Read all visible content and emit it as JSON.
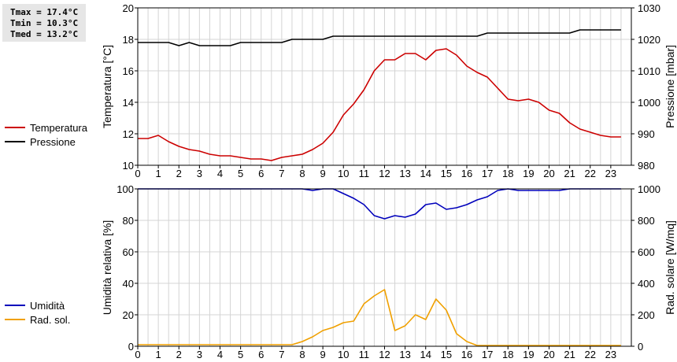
{
  "stats": {
    "tmax": "Tmax = 17.4°C",
    "tmin": "Tmin = 10.3°C",
    "tmed": "Tmed = 13.2°C"
  },
  "legend_top": [
    {
      "label": "Temperatura",
      "color": "#cc0000"
    },
    {
      "label": "Pressione",
      "color": "#000000"
    }
  ],
  "legend_bottom": [
    {
      "label": "Umidità",
      "color": "#0000bb"
    },
    {
      "label": "Rad. sol.",
      "color": "#f0a000"
    }
  ],
  "chart_data": [
    {
      "type": "line",
      "ylabel": "Temperatura [°C]",
      "y2label": "Pressione [mbar]",
      "xlim": [
        0,
        24
      ],
      "ylim": [
        10,
        20
      ],
      "y2lim": [
        980,
        1030
      ],
      "xticks": [
        0,
        1,
        2,
        3,
        4,
        5,
        6,
        7,
        8,
        9,
        10,
        11,
        12,
        13,
        14,
        15,
        16,
        17,
        18,
        19,
        20,
        21,
        22,
        23
      ],
      "yticks": [
        10,
        12,
        14,
        16,
        18,
        20
      ],
      "y2ticks": [
        980,
        990,
        1000,
        1010,
        1020,
        1030
      ],
      "grid": true,
      "series": [
        {
          "name": "Temperatura",
          "axis": "left",
          "color": "#cc0000",
          "x": [
            0,
            0.5,
            1,
            1.5,
            2,
            2.5,
            3,
            3.5,
            4,
            4.5,
            5,
            5.5,
            6,
            6.5,
            7,
            7.5,
            8,
            8.5,
            9,
            9.5,
            10,
            10.5,
            11,
            11.5,
            12,
            12.5,
            13,
            13.5,
            14,
            14.5,
            15,
            15.5,
            16,
            16.5,
            17,
            17.5,
            18,
            18.5,
            19,
            19.5,
            20,
            20.5,
            21,
            21.5,
            22,
            22.5,
            23,
            23.5
          ],
          "y": [
            11.7,
            11.7,
            11.9,
            11.5,
            11.2,
            11.0,
            10.9,
            10.7,
            10.6,
            10.6,
            10.5,
            10.4,
            10.4,
            10.3,
            10.5,
            10.6,
            10.7,
            11.0,
            11.4,
            12.1,
            13.2,
            13.9,
            14.8,
            16.0,
            16.7,
            16.7,
            17.1,
            17.1,
            16.7,
            17.3,
            17.4,
            17.0,
            16.3,
            15.9,
            15.6,
            14.9,
            14.2,
            14.1,
            14.2,
            14.0,
            13.5,
            13.3,
            12.7,
            12.3,
            12.1,
            11.9,
            11.8,
            11.8
          ]
        },
        {
          "name": "Pressione",
          "axis": "right",
          "color": "#000000",
          "x": [
            0,
            0.5,
            1,
            1.5,
            2,
            2.5,
            3,
            3.5,
            4,
            4.5,
            5,
            5.5,
            6,
            6.5,
            7,
            7.5,
            8,
            8.5,
            9,
            9.5,
            10,
            10.5,
            11,
            11.5,
            12,
            12.5,
            13,
            13.5,
            14,
            14.5,
            15,
            15.5,
            16,
            16.5,
            17,
            17.5,
            18,
            18.5,
            19,
            19.5,
            20,
            20.5,
            21,
            21.5,
            22,
            22.5,
            23,
            23.5
          ],
          "y": [
            1019,
            1019,
            1019,
            1019,
            1018,
            1019,
            1018,
            1018,
            1018,
            1018,
            1019,
            1019,
            1019,
            1019,
            1019,
            1020,
            1020,
            1020,
            1020,
            1021,
            1021,
            1021,
            1021,
            1021,
            1021,
            1021,
            1021,
            1021,
            1021,
            1021,
            1021,
            1021,
            1021,
            1021,
            1022,
            1022,
            1022,
            1022,
            1022,
            1022,
            1022,
            1022,
            1022,
            1023,
            1023,
            1023,
            1023,
            1023
          ]
        }
      ]
    },
    {
      "type": "line",
      "ylabel": "Umidità relativa [%]",
      "y2label": "Rad. solare [W/mq]",
      "xlim": [
        0,
        24
      ],
      "ylim": [
        0,
        100
      ],
      "y2lim": [
        0,
        1000
      ],
      "xticks": [
        0,
        1,
        2,
        3,
        4,
        5,
        6,
        7,
        8,
        9,
        10,
        11,
        12,
        13,
        14,
        15,
        16,
        17,
        18,
        19,
        20,
        21,
        22,
        23
      ],
      "yticks": [
        0,
        20,
        40,
        60,
        80,
        100
      ],
      "y2ticks": [
        0,
        200,
        400,
        600,
        800,
        1000
      ],
      "grid": true,
      "series": [
        {
          "name": "Umidità",
          "axis": "left",
          "color": "#0000bb",
          "x": [
            0,
            0.5,
            1,
            1.5,
            2,
            2.5,
            3,
            3.5,
            4,
            4.5,
            5,
            5.5,
            6,
            6.5,
            7,
            7.5,
            8,
            8.5,
            9,
            9.5,
            10,
            10.5,
            11,
            11.5,
            12,
            12.5,
            13,
            13.5,
            14,
            14.5,
            15,
            15.5,
            16,
            16.5,
            17,
            17.5,
            18,
            18.5,
            19,
            19.5,
            20,
            20.5,
            21,
            21.5,
            22,
            22.5,
            23,
            23.5
          ],
          "y": [
            100,
            100,
            100,
            100,
            100,
            100,
            100,
            100,
            100,
            100,
            100,
            100,
            100,
            100,
            100,
            100,
            100,
            99,
            100,
            100,
            97,
            94,
            90,
            83,
            81,
            83,
            82,
            84,
            90,
            91,
            87,
            88,
            90,
            93,
            95,
            99,
            100,
            99,
            99,
            99,
            99,
            99,
            100,
            100,
            100,
            100,
            100,
            100
          ]
        },
        {
          "name": "Rad. sol.",
          "axis": "right",
          "color": "#f0a000",
          "x": [
            0,
            0.5,
            1,
            1.5,
            2,
            2.5,
            3,
            3.5,
            4,
            4.5,
            5,
            5.5,
            6,
            6.5,
            7,
            7.5,
            8,
            8.5,
            9,
            9.5,
            10,
            10.5,
            11,
            11.5,
            12,
            12.5,
            13,
            13.5,
            14,
            14.5,
            15,
            15.5,
            16,
            16.5,
            17,
            17.5,
            18,
            18.5,
            19,
            19.5,
            20,
            20.5,
            21,
            21.5,
            22,
            22.5,
            23,
            23.5
          ],
          "y": [
            10,
            10,
            10,
            10,
            10,
            10,
            10,
            10,
            10,
            10,
            10,
            10,
            10,
            10,
            10,
            10,
            30,
            60,
            100,
            120,
            150,
            160,
            270,
            320,
            360,
            100,
            130,
            200,
            170,
            300,
            230,
            80,
            30,
            5,
            5,
            5,
            5,
            5,
            5,
            5,
            5,
            5,
            5,
            5,
            5,
            5,
            5,
            5
          ]
        }
      ]
    }
  ]
}
